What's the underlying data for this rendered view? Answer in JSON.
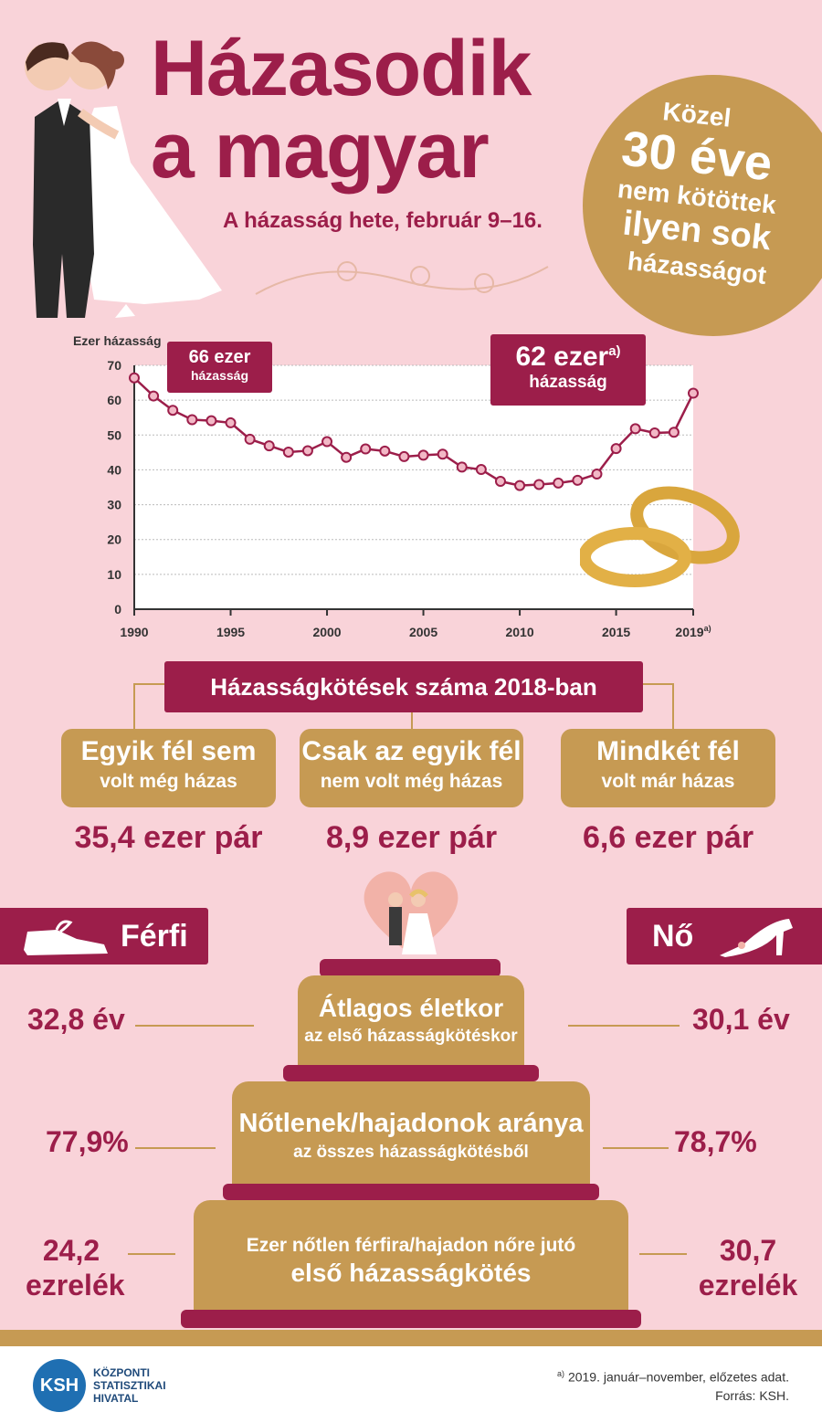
{
  "header": {
    "title_line1": "Házasodik",
    "title_line2": "a magyar",
    "subtitle": "A házasság hete, február 9–16."
  },
  "badge": {
    "line1": "Közel",
    "line2": "30 éve",
    "line3": "nem kötöttek",
    "line4": "ilyen sok",
    "line5": "házasságot"
  },
  "chart_data": {
    "type": "line",
    "ylabel": "Ezer házasság",
    "ylim": [
      0,
      70
    ],
    "yticks": [
      0,
      10,
      20,
      30,
      40,
      50,
      60,
      70
    ],
    "xticks": [
      "1990",
      "1995",
      "2000",
      "2005",
      "2010",
      "2015",
      "2019"
    ],
    "xtick_last_note": "a)",
    "x": [
      1990,
      1991,
      1992,
      1993,
      1994,
      1995,
      1996,
      1997,
      1998,
      1999,
      2000,
      2001,
      2002,
      2003,
      2004,
      2005,
      2006,
      2007,
      2008,
      2009,
      2010,
      2011,
      2012,
      2013,
      2014,
      2015,
      2016,
      2017,
      2018,
      2019
    ],
    "values": [
      66.4,
      61.2,
      57.1,
      54.4,
      54.1,
      53.5,
      48.8,
      46.9,
      45.1,
      45.5,
      48.1,
      43.6,
      46.0,
      45.4,
      43.8,
      44.2,
      44.5,
      40.8,
      40.1,
      36.7,
      35.5,
      35.8,
      36.2,
      37.0,
      38.8,
      46.1,
      51.8,
      50.6,
      50.8,
      62.0
    ],
    "annotations": [
      {
        "value": "66 ezer",
        "sub": "házasság"
      },
      {
        "value": "62 ezer",
        "note": "a)",
        "sub": "házasság"
      }
    ],
    "colors": {
      "line": "#9c1e4a",
      "marker_fill": "#f2b8c6"
    }
  },
  "stats": {
    "title": "Házasságkötések száma 2018-ban",
    "items": [
      {
        "l1": "Egyik fél sem",
        "l2": "volt még házas",
        "value": "35,4 ezer pár"
      },
      {
        "l1": "Csak az egyik fél",
        "l2": "nem volt még házas",
        "value": "8,9 ezer pár"
      },
      {
        "l1": "Mindkét fél",
        "l2": "volt már házas",
        "value": "6,6 ezer pár"
      }
    ]
  },
  "gender": {
    "male": "Férfi",
    "female": "Nő"
  },
  "cake": {
    "tier1": {
      "l1": "Átlagos életkor",
      "l2": "az első házasságkötéskor",
      "male": "32,8 év",
      "female": "30,1 év"
    },
    "tier2": {
      "l1": "Nőtlenek/hajadonok aránya",
      "l2": "az összes házasságkötésből",
      "male": "77,9%",
      "female": "78,7%"
    },
    "tier3": {
      "l1": "Ezer nőtlen férfira/hajadon nőre jutó",
      "l2": "első házasságkötés",
      "male_l1": "24,2",
      "male_l2": "ezrelék",
      "female_l1": "30,7",
      "female_l2": "ezrelék"
    }
  },
  "footer": {
    "logo": "KSH",
    "org_l1": "KÖZPONTI",
    "org_l2": "STATISZTIKAI",
    "org_l3": "HIVATAL",
    "note_mark": "a)",
    "note": "2019. január–november, előzetes adat.",
    "source": "Forrás: KSH."
  },
  "colors": {
    "maroon": "#9c1e4a",
    "gold": "#c69a53",
    "background": "#f9d3d9"
  }
}
